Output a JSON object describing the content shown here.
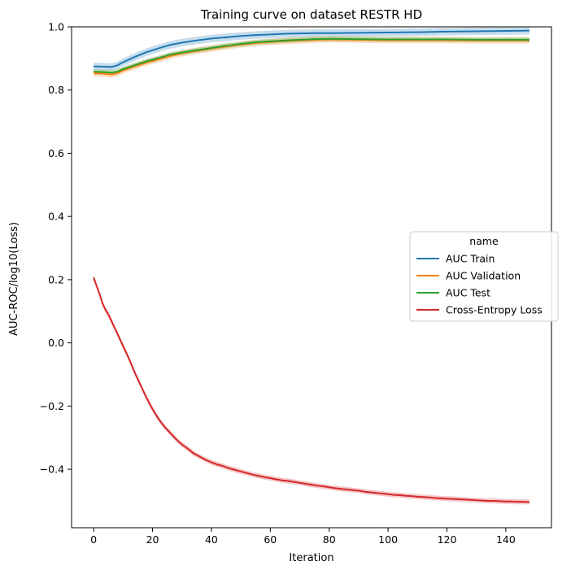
{
  "chart_data": {
    "type": "line",
    "title": "Training curve on dataset RESTR HD",
    "xlabel": "Iteration",
    "ylabel": "AUC-ROC/log10(Loss)",
    "xlim": [
      -7.5,
      155.5
    ],
    "ylim": [
      -0.585,
      1.0
    ],
    "xticks": [
      0,
      20,
      40,
      60,
      80,
      100,
      120,
      140
    ],
    "yticks": [
      -0.4,
      -0.2,
      0.0,
      0.2,
      0.4,
      0.6,
      0.8,
      1.0
    ],
    "ytick_labels": [
      "−0.4",
      "−0.2",
      "0.0",
      "0.2",
      "0.4",
      "0.6",
      "0.8",
      "1.0"
    ],
    "grid": false,
    "legend": {
      "title": "name",
      "placement": "center-right"
    },
    "series": [
      {
        "name": "AUC Train",
        "color": "#1f77b4",
        "points": [
          [
            0,
            0.875
          ],
          [
            3,
            0.874
          ],
          [
            6,
            0.873
          ],
          [
            8,
            0.878
          ],
          [
            10,
            0.888
          ],
          [
            14,
            0.905
          ],
          [
            18,
            0.92
          ],
          [
            22,
            0.932
          ],
          [
            26,
            0.943
          ],
          [
            30,
            0.95
          ],
          [
            35,
            0.957
          ],
          [
            40,
            0.963
          ],
          [
            45,
            0.967
          ],
          [
            50,
            0.971
          ],
          [
            55,
            0.974
          ],
          [
            60,
            0.976
          ],
          [
            65,
            0.978
          ],
          [
            70,
            0.979
          ],
          [
            75,
            0.98
          ],
          [
            80,
            0.98
          ],
          [
            90,
            0.981
          ],
          [
            100,
            0.982
          ],
          [
            110,
            0.983
          ],
          [
            120,
            0.985
          ],
          [
            130,
            0.986
          ],
          [
            140,
            0.987
          ],
          [
            148,
            0.988
          ]
        ],
        "band": 0.012
      },
      {
        "name": "AUC Validation",
        "color": "#ff7f0e",
        "points": [
          [
            0,
            0.853
          ],
          [
            3,
            0.852
          ],
          [
            6,
            0.849
          ],
          [
            8,
            0.853
          ],
          [
            10,
            0.862
          ],
          [
            14,
            0.875
          ],
          [
            18,
            0.887
          ],
          [
            22,
            0.897
          ],
          [
            26,
            0.908
          ],
          [
            30,
            0.916
          ],
          [
            35,
            0.924
          ],
          [
            40,
            0.931
          ],
          [
            45,
            0.938
          ],
          [
            50,
            0.944
          ],
          [
            55,
            0.949
          ],
          [
            60,
            0.952
          ],
          [
            65,
            0.955
          ],
          [
            70,
            0.957
          ],
          [
            75,
            0.959
          ],
          [
            80,
            0.96
          ],
          [
            90,
            0.959
          ],
          [
            100,
            0.958
          ],
          [
            110,
            0.958
          ],
          [
            120,
            0.958
          ],
          [
            130,
            0.957
          ],
          [
            140,
            0.957
          ],
          [
            148,
            0.957
          ]
        ],
        "band": 0.01
      },
      {
        "name": "AUC Test",
        "color": "#2ca02c",
        "points": [
          [
            0,
            0.858
          ],
          [
            3,
            0.857
          ],
          [
            6,
            0.855
          ],
          [
            8,
            0.858
          ],
          [
            10,
            0.866
          ],
          [
            14,
            0.879
          ],
          [
            18,
            0.891
          ],
          [
            22,
            0.901
          ],
          [
            26,
            0.912
          ],
          [
            30,
            0.919
          ],
          [
            35,
            0.926
          ],
          [
            40,
            0.933
          ],
          [
            45,
            0.94
          ],
          [
            50,
            0.946
          ],
          [
            55,
            0.951
          ],
          [
            60,
            0.954
          ],
          [
            65,
            0.957
          ],
          [
            70,
            0.959
          ],
          [
            75,
            0.961
          ],
          [
            80,
            0.962
          ],
          [
            90,
            0.961
          ],
          [
            100,
            0.96
          ],
          [
            110,
            0.96
          ],
          [
            120,
            0.96
          ],
          [
            130,
            0.959
          ],
          [
            140,
            0.959
          ],
          [
            148,
            0.959
          ]
        ],
        "band": 0.008
      },
      {
        "name": "Cross-Entropy Loss",
        "color": "#d62728",
        "points": [
          [
            0,
            0.207
          ],
          [
            1,
            0.18
          ],
          [
            2,
            0.155
          ],
          [
            3,
            0.125
          ],
          [
            4,
            0.105
          ],
          [
            5,
            0.09
          ],
          [
            6,
            0.07
          ],
          [
            7,
            0.05
          ],
          [
            8,
            0.03
          ],
          [
            9,
            0.01
          ],
          [
            10,
            -0.01
          ],
          [
            12,
            -0.05
          ],
          [
            14,
            -0.095
          ],
          [
            16,
            -0.135
          ],
          [
            18,
            -0.175
          ],
          [
            20,
            -0.21
          ],
          [
            22,
            -0.24
          ],
          [
            24,
            -0.265
          ],
          [
            26,
            -0.285
          ],
          [
            28,
            -0.305
          ],
          [
            30,
            -0.322
          ],
          [
            32,
            -0.335
          ],
          [
            34,
            -0.35
          ],
          [
            36,
            -0.36
          ],
          [
            38,
            -0.37
          ],
          [
            40,
            -0.378
          ],
          [
            42,
            -0.385
          ],
          [
            44,
            -0.39
          ],
          [
            46,
            -0.397
          ],
          [
            48,
            -0.402
          ],
          [
            50,
            -0.407
          ],
          [
            52,
            -0.412
          ],
          [
            54,
            -0.417
          ],
          [
            56,
            -0.421
          ],
          [
            58,
            -0.425
          ],
          [
            60,
            -0.428
          ],
          [
            62,
            -0.432
          ],
          [
            64,
            -0.435
          ],
          [
            66,
            -0.437
          ],
          [
            68,
            -0.44
          ],
          [
            70,
            -0.443
          ],
          [
            72,
            -0.446
          ],
          [
            74,
            -0.449
          ],
          [
            76,
            -0.452
          ],
          [
            78,
            -0.454
          ],
          [
            80,
            -0.457
          ],
          [
            82,
            -0.46
          ],
          [
            84,
            -0.462
          ],
          [
            86,
            -0.464
          ],
          [
            88,
            -0.466
          ],
          [
            90,
            -0.468
          ],
          [
            92,
            -0.471
          ],
          [
            94,
            -0.473
          ],
          [
            96,
            -0.475
          ],
          [
            98,
            -0.477
          ],
          [
            100,
            -0.479
          ],
          [
            102,
            -0.481
          ],
          [
            104,
            -0.482
          ],
          [
            106,
            -0.484
          ],
          [
            108,
            -0.485
          ],
          [
            110,
            -0.487
          ],
          [
            112,
            -0.488
          ],
          [
            114,
            -0.489
          ],
          [
            116,
            -0.491
          ],
          [
            118,
            -0.492
          ],
          [
            120,
            -0.493
          ],
          [
            122,
            -0.494
          ],
          [
            124,
            -0.495
          ],
          [
            126,
            -0.496
          ],
          [
            128,
            -0.497
          ],
          [
            130,
            -0.498
          ],
          [
            132,
            -0.499
          ],
          [
            134,
            -0.5
          ],
          [
            136,
            -0.5
          ],
          [
            138,
            -0.501
          ],
          [
            140,
            -0.502
          ],
          [
            142,
            -0.502
          ],
          [
            144,
            -0.503
          ],
          [
            146,
            -0.503
          ],
          [
            148,
            -0.504
          ]
        ],
        "band": 0.008
      }
    ]
  }
}
